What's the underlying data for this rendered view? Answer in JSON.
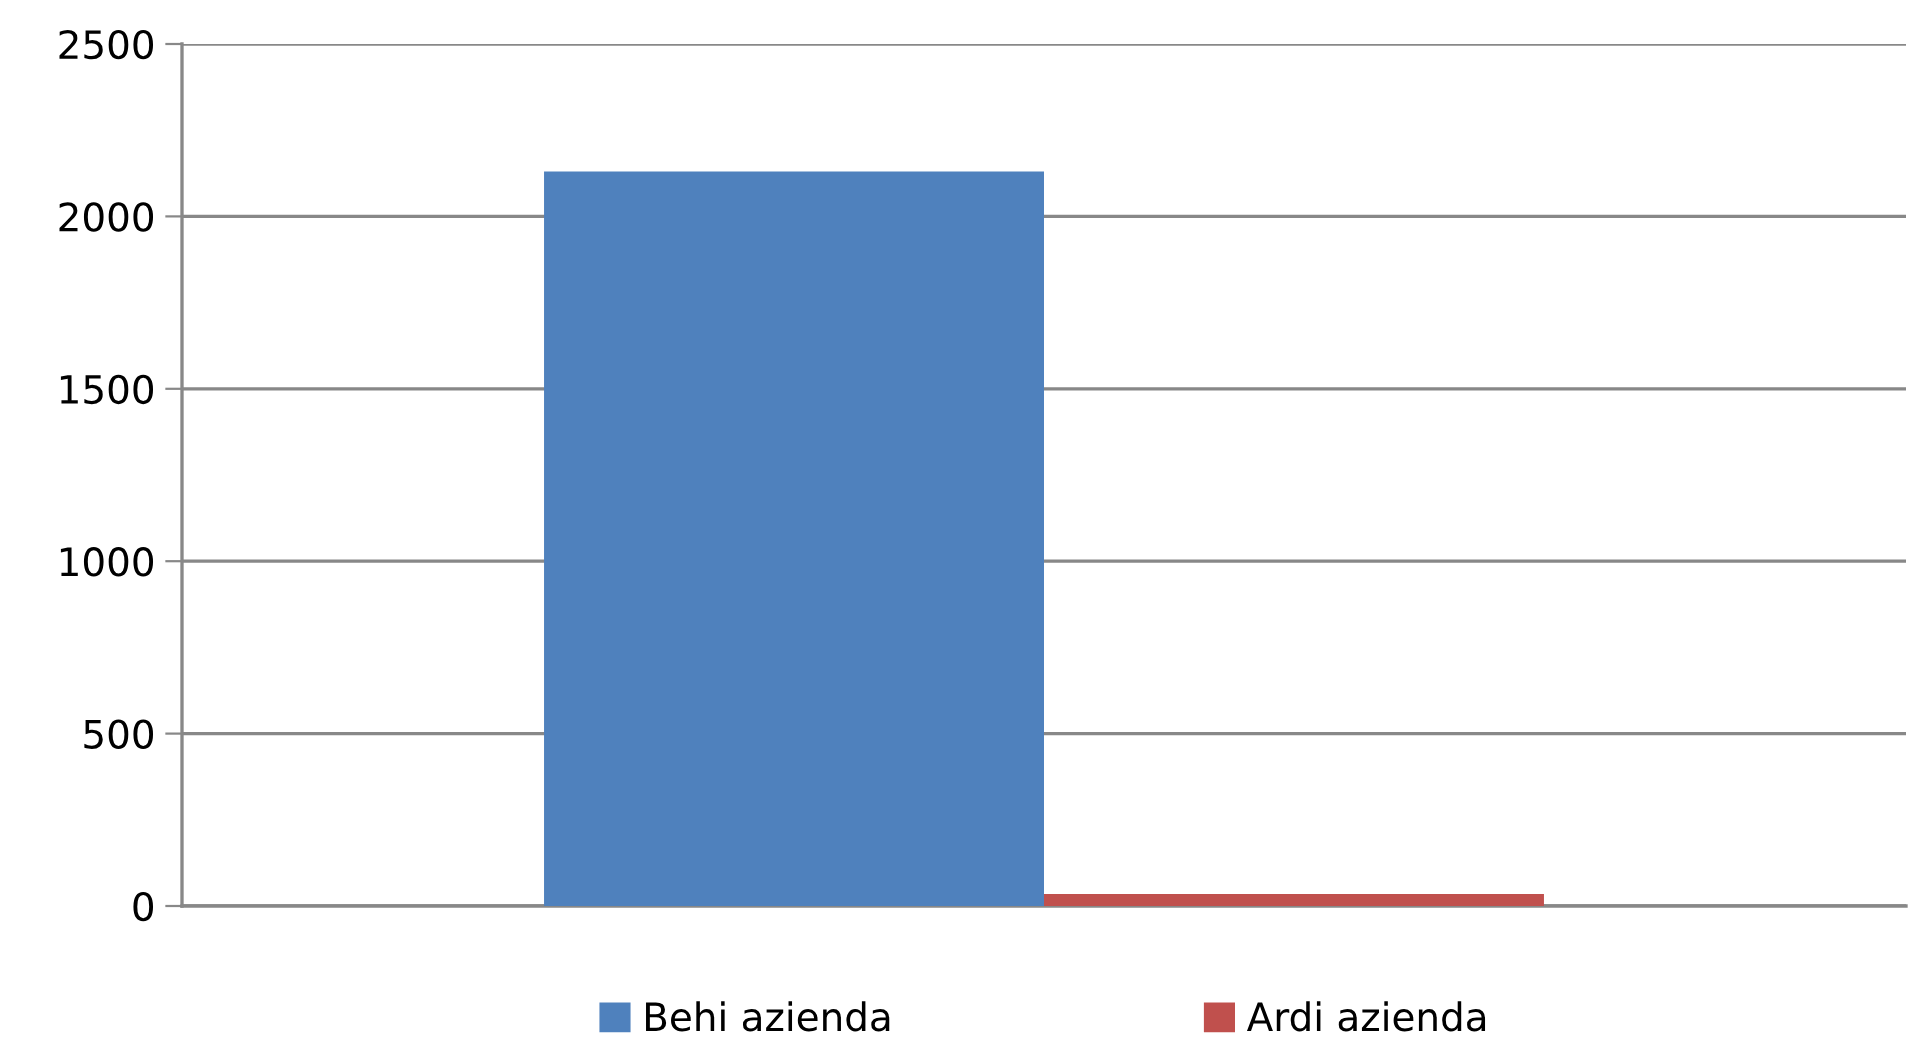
{
  "chart_data": {
    "type": "bar",
    "categories": [
      null
    ],
    "series": [
      {
        "name": "Behi azienda",
        "color": "#4f81bd",
        "values": [
          2130
        ]
      },
      {
        "name": "Ardi azienda",
        "color": "#c0504d",
        "values": [
          35
        ]
      }
    ],
    "ylim": [
      0,
      2500
    ],
    "yticks": [
      0,
      500,
      1000,
      1500,
      2000,
      2500
    ],
    "grid": "y",
    "legend": "bottom"
  }
}
